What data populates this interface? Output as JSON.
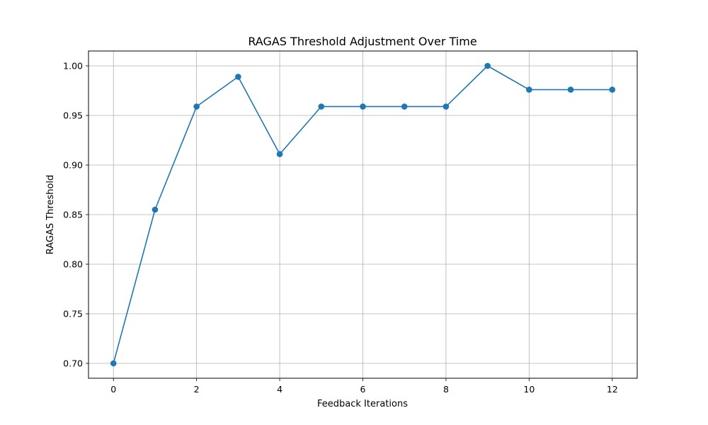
{
  "chart_data": {
    "type": "line",
    "title": "RAGAS Threshold Adjustment Over Time",
    "xlabel": "Feedback Iterations",
    "ylabel": "RAGAS Threshold",
    "xlim": [
      -0.6,
      12.6
    ],
    "ylim": [
      0.685,
      1.015
    ],
    "xticks": [
      0,
      2,
      4,
      6,
      8,
      10,
      12
    ],
    "yticks": [
      0.7,
      0.75,
      0.8,
      0.85,
      0.9,
      0.95,
      1.0
    ],
    "xtick_labels": [
      "0",
      "2",
      "4",
      "6",
      "8",
      "10",
      "12"
    ],
    "ytick_labels": [
      "0.70",
      "0.75",
      "0.80",
      "0.85",
      "0.90",
      "0.95",
      "1.00"
    ],
    "grid": true,
    "marker": "circle",
    "series": [
      {
        "x": [
          0,
          1,
          2,
          3,
          4,
          5,
          6,
          7,
          8,
          9,
          10,
          11,
          12
        ],
        "values": [
          0.7,
          0.855,
          0.959,
          0.989,
          0.911,
          0.959,
          0.959,
          0.959,
          0.959,
          1.0,
          0.976,
          0.976,
          0.976
        ],
        "color": "#1f77b4"
      }
    ]
  }
}
